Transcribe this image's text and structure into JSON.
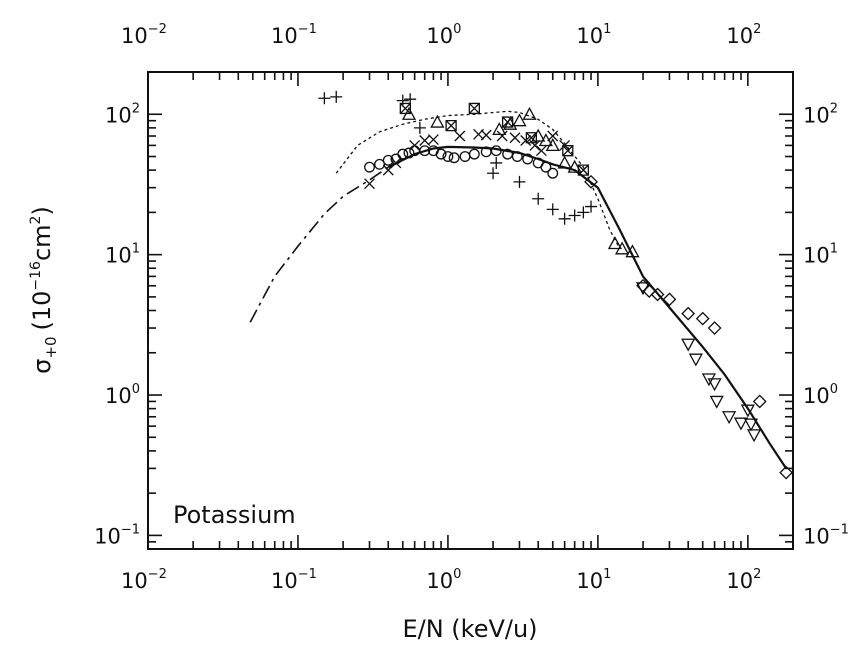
{
  "chart_data": {
    "type": "scatter",
    "title": "",
    "xlabel": "E/N (keV/u)",
    "ylabel": {
      "base": "σ",
      "sub": "+0",
      "units_open": "(10",
      "units_exp": "−16",
      "units_mid": "cm",
      "units_exp2": "2",
      "units_close": ")"
    },
    "xscale": "log",
    "yscale": "log",
    "xlim": [
      0.01,
      200
    ],
    "ylim": [
      0.08,
      200
    ],
    "x_ticks": [
      {
        "value": 0.01,
        "base": "10",
        "exp": "−2"
      },
      {
        "value": 0.1,
        "base": "10",
        "exp": "−1"
      },
      {
        "value": 1,
        "base": "10",
        "exp": "0"
      },
      {
        "value": 10,
        "base": "10",
        "exp": "1"
      },
      {
        "value": 100,
        "base": "10",
        "exp": "2"
      }
    ],
    "y_ticks": [
      {
        "value": 0.1,
        "base": "10",
        "exp": "−1"
      },
      {
        "value": 1,
        "base": "10",
        "exp": "0"
      },
      {
        "value": 10,
        "base": "10",
        "exp": "1"
      },
      {
        "value": 100,
        "base": "10",
        "exp": "2"
      }
    ],
    "annotation": "Potassium",
    "grid": false,
    "series": [
      {
        "marker": "plus",
        "points": [
          [
            0.15,
            130
          ],
          [
            0.18,
            133
          ],
          [
            0.5,
            125
          ],
          [
            0.56,
            128
          ],
          [
            0.65,
            80
          ],
          [
            2.0,
            38
          ],
          [
            2.1,
            45
          ],
          [
            3.0,
            33
          ],
          [
            4.0,
            25
          ],
          [
            5.0,
            21
          ],
          [
            6.0,
            18
          ],
          [
            7.0,
            19
          ],
          [
            8.0,
            20
          ],
          [
            9.0,
            22
          ]
        ]
      },
      {
        "marker": "square-cross",
        "points": [
          [
            0.52,
            110
          ],
          [
            1.05,
            83
          ],
          [
            1.5,
            110
          ],
          [
            2.5,
            88
          ],
          [
            3.6,
            68
          ],
          [
            6.3,
            55
          ],
          [
            8.0,
            40
          ]
        ]
      },
      {
        "marker": "triangle-up",
        "points": [
          [
            0.55,
            100
          ],
          [
            0.85,
            88
          ],
          [
            2.2,
            78
          ],
          [
            2.6,
            85
          ],
          [
            3.0,
            90
          ],
          [
            3.5,
            100
          ],
          [
            4.0,
            70
          ],
          [
            4.5,
            65
          ],
          [
            5.0,
            60
          ],
          [
            6.0,
            45
          ],
          [
            7.0,
            42
          ],
          [
            13.0,
            12
          ],
          [
            14.5,
            11
          ],
          [
            17.0,
            10.5
          ]
        ]
      },
      {
        "marker": "cross",
        "points": [
          [
            0.3,
            32
          ],
          [
            0.4,
            40
          ],
          [
            0.45,
            45
          ],
          [
            0.6,
            60
          ],
          [
            0.7,
            65
          ],
          [
            0.8,
            66
          ],
          [
            1.2,
            70
          ],
          [
            1.6,
            72
          ],
          [
            1.8,
            71
          ],
          [
            2.3,
            70
          ],
          [
            2.8,
            68
          ],
          [
            3.3,
            65
          ],
          [
            3.8,
            60
          ],
          [
            4.2,
            55
          ],
          [
            5.0,
            70
          ],
          [
            6.0,
            60
          ]
        ]
      },
      {
        "marker": "circle",
        "points": [
          [
            0.3,
            42
          ],
          [
            0.35,
            44
          ],
          [
            0.4,
            47
          ],
          [
            0.45,
            48
          ],
          [
            0.5,
            52
          ],
          [
            0.55,
            53
          ],
          [
            0.6,
            55
          ],
          [
            0.7,
            55
          ],
          [
            0.8,
            55
          ],
          [
            0.9,
            52
          ],
          [
            1.0,
            50
          ],
          [
            1.1,
            49
          ],
          [
            1.3,
            50
          ],
          [
            1.5,
            52
          ],
          [
            1.8,
            54
          ],
          [
            2.1,
            55
          ],
          [
            2.5,
            52
          ],
          [
            2.9,
            50
          ],
          [
            3.4,
            48
          ],
          [
            4.0,
            45
          ],
          [
            4.5,
            42
          ],
          [
            5.0,
            38
          ]
        ]
      },
      {
        "marker": "diamond",
        "points": [
          [
            9.0,
            33
          ],
          [
            20.0,
            6.0
          ],
          [
            22.0,
            5.5
          ],
          [
            25.0,
            5.2
          ],
          [
            30.0,
            4.8
          ],
          [
            40.0,
            3.8
          ],
          [
            50.0,
            3.5
          ],
          [
            60.0,
            3.0
          ],
          [
            120.0,
            0.9
          ],
          [
            180.0,
            0.28
          ]
        ]
      },
      {
        "marker": "triangle-down",
        "points": [
          [
            20.0,
            5.8
          ],
          [
            40.0,
            2.3
          ],
          [
            45.0,
            1.8
          ],
          [
            55.0,
            1.3
          ],
          [
            60.0,
            1.2
          ],
          [
            62.0,
            0.9
          ],
          [
            75.0,
            0.7
          ],
          [
            90.0,
            0.63
          ],
          [
            100.0,
            0.78
          ],
          [
            105.0,
            0.62
          ],
          [
            110.0,
            0.52
          ]
        ]
      }
    ],
    "curves": [
      {
        "style": "dash-dot",
        "points": [
          [
            0.048,
            3.3
          ],
          [
            0.07,
            7.0
          ],
          [
            0.1,
            11.5
          ],
          [
            0.15,
            19.5
          ],
          [
            0.2,
            26.0
          ],
          [
            0.3,
            34.0
          ],
          [
            0.4,
            42.0
          ]
        ]
      },
      {
        "style": "solid",
        "points": [
          [
            0.4,
            42.0
          ],
          [
            0.6,
            52.0
          ],
          [
            0.8,
            57.0
          ],
          [
            1.0,
            58.5
          ],
          [
            1.5,
            58.0
          ],
          [
            2.0,
            57.0
          ],
          [
            3.0,
            53.0
          ],
          [
            4.0,
            48.0
          ],
          [
            5.0,
            44.0
          ],
          [
            7.0,
            40.0
          ],
          [
            10.0,
            30.0
          ],
          [
            14.0,
            15.0
          ],
          [
            20.0,
            7.0
          ],
          [
            30.0,
            4.2
          ],
          [
            50.0,
            2.2
          ],
          [
            70.0,
            1.4
          ],
          [
            100.0,
            0.8
          ],
          [
            140.0,
            0.45
          ],
          [
            180.0,
            0.3
          ]
        ]
      },
      {
        "style": "dotted",
        "points": [
          [
            0.18,
            38.0
          ],
          [
            0.25,
            60.0
          ],
          [
            0.35,
            75.0
          ],
          [
            0.5,
            85.0
          ],
          [
            0.7,
            92.0
          ],
          [
            1.0,
            98.0
          ],
          [
            1.5,
            100.0
          ],
          [
            2.0,
            103.0
          ],
          [
            2.5,
            105.0
          ],
          [
            3.0,
            103.0
          ],
          [
            4.0,
            92.0
          ],
          [
            5.0,
            78.0
          ],
          [
            6.0,
            62.0
          ],
          [
            8.0,
            42.0
          ],
          [
            10.0,
            25.0
          ],
          [
            12.0,
            15.0
          ],
          [
            14.0,
            11.0
          ]
        ]
      }
    ]
  }
}
